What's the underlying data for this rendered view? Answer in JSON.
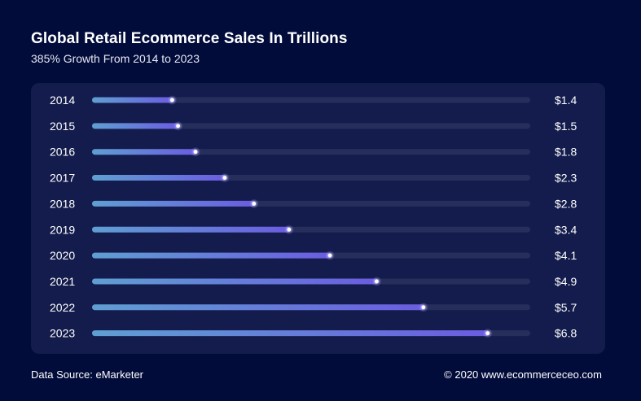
{
  "header": {
    "title": "Global Retail Ecommerce Sales In Trillions",
    "subtitle": "385% Growth From 2014 to 2023"
  },
  "footer": {
    "source": "Data Source: eMarketer",
    "credit": "© 2020 www.ecommerceceo.com"
  },
  "colors": {
    "background": "#020c3a",
    "panel": "#131c4c",
    "track": "#262f5c",
    "bar_start": "#5f9fd2",
    "bar_end": "#6b5ce0"
  },
  "chart_data": {
    "type": "bar",
    "orientation": "horizontal",
    "title": "Global Retail Ecommerce Sales In Trillions",
    "subtitle": "385% Growth From 2014 to 2023",
    "categories": [
      "2014",
      "2015",
      "2016",
      "2017",
      "2018",
      "2019",
      "2020",
      "2021",
      "2022",
      "2023"
    ],
    "values": [
      1.4,
      1.5,
      1.8,
      2.3,
      2.8,
      3.4,
      4.1,
      4.9,
      5.7,
      6.8
    ],
    "value_labels": [
      "$1.4",
      "$1.5",
      "$1.8",
      "$2.3",
      "$2.8",
      "$3.4",
      "$4.1",
      "$4.9",
      "$5.7",
      "$6.8"
    ],
    "xlim": [
      0,
      7.5
    ],
    "grid": false,
    "legend": "none"
  }
}
